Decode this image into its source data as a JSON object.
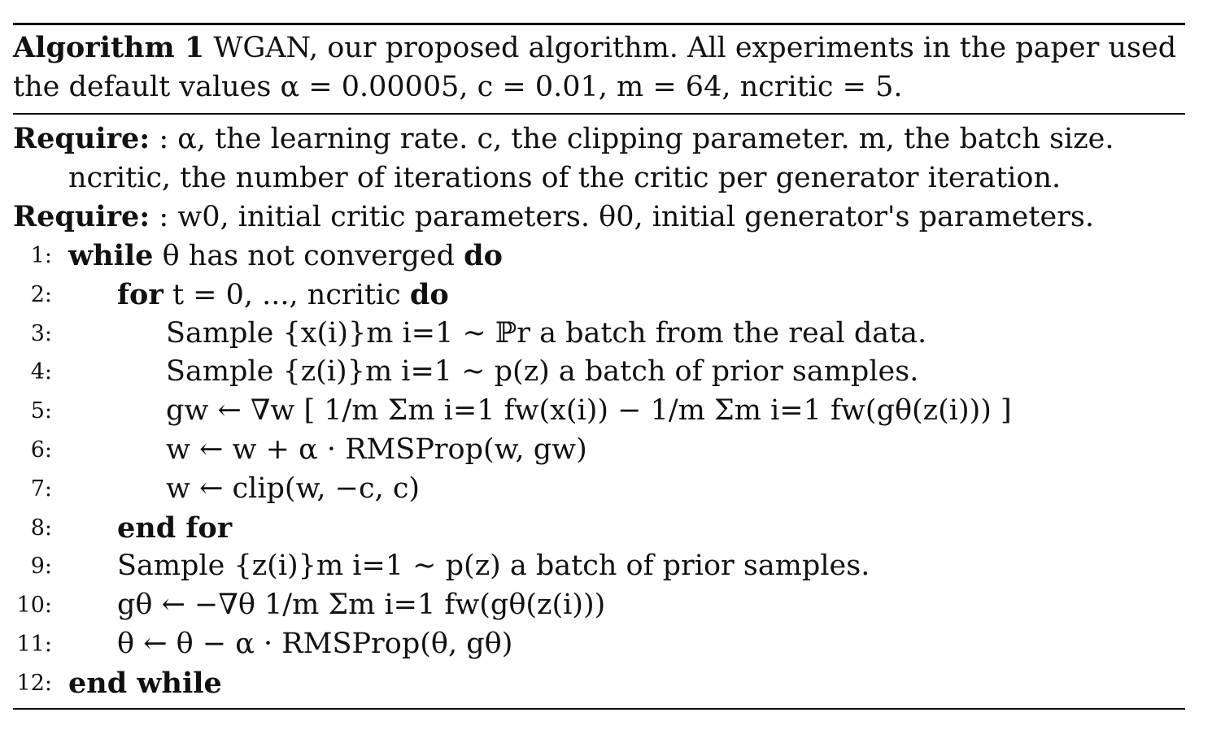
{
  "caption": {
    "label": "Algorithm 1",
    "text_line1": "WGAN, our proposed algorithm. All experiments in the paper used",
    "text_line2": "the default values α = 0.00005, c = 0.01, m = 64, ncritic = 5."
  },
  "require": [
    {
      "keyword": "Require:",
      "line1": ": α, the learning rate. c, the clipping parameter. m, the batch size.",
      "line2": "ncritic, the number of iterations of the critic per generator iteration."
    },
    {
      "keyword": "Require:",
      "line1": ": w0, initial critic parameters. θ0, initial generator's parameters."
    }
  ],
  "lines": [
    {
      "num": "1:",
      "indent": 0,
      "kw_start": "while",
      "text": "θ has not converged",
      "kw_end": "do"
    },
    {
      "num": "2:",
      "indent": 1,
      "kw_start": "for",
      "text": "t = 0, ..., ncritic",
      "kw_end": "do"
    },
    {
      "num": "3:",
      "indent": 2,
      "kw_start": "",
      "text": "Sample {x(i)}m i=1 ∼ ℙr a batch from the real data.",
      "kw_end": ""
    },
    {
      "num": "4:",
      "indent": 2,
      "kw_start": "",
      "text": "Sample {z(i)}m i=1 ∼ p(z) a batch of prior samples.",
      "kw_end": ""
    },
    {
      "num": "5:",
      "indent": 2,
      "kw_start": "",
      "text": "gw ← ∇w [ 1/m Σm i=1 fw(x(i)) − 1/m Σm i=1 fw(gθ(z(i))) ]",
      "kw_end": ""
    },
    {
      "num": "6:",
      "indent": 2,
      "kw_start": "",
      "text": "w ← w + α · RMSProp(w, gw)",
      "kw_end": ""
    },
    {
      "num": "7:",
      "indent": 2,
      "kw_start": "",
      "text": "w ← clip(w, −c, c)",
      "kw_end": ""
    },
    {
      "num": "8:",
      "indent": 1,
      "kw_start": "end for",
      "text": "",
      "kw_end": ""
    },
    {
      "num": "9:",
      "indent": 1,
      "kw_start": "",
      "text": "Sample {z(i)}m i=1 ∼ p(z) a batch of prior samples.",
      "kw_end": ""
    },
    {
      "num": "10:",
      "indent": 1,
      "kw_start": "",
      "text": "gθ ← −∇θ 1/m Σm i=1 fw(gθ(z(i)))",
      "kw_end": ""
    },
    {
      "num": "11:",
      "indent": 1,
      "kw_start": "",
      "text": "θ ← θ − α · RMSProp(θ, gθ)",
      "kw_end": ""
    },
    {
      "num": "12:",
      "indent": 0,
      "kw_start": "end while",
      "text": "",
      "kw_end": ""
    }
  ]
}
